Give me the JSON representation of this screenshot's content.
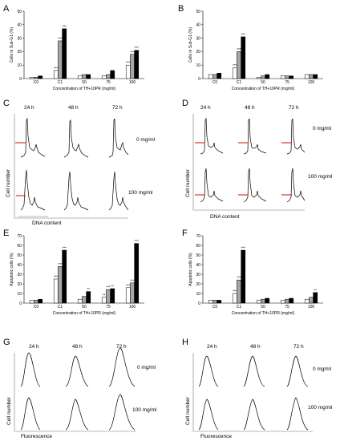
{
  "panel_letters": [
    "A",
    "B",
    "C",
    "D",
    "E",
    "F",
    "G",
    "H"
  ],
  "time_labels": [
    "24 h",
    "48 h",
    "72 h"
  ],
  "dose_labels": [
    "0 mg/ml",
    "100 mg/ml"
  ],
  "common": {
    "cell_number": "Cell number",
    "dna_content": "DNA content",
    "fluorescence": "Fluorescence",
    "concentration": "Concentration of TH+10PR (mg/ml)"
  },
  "colors": {
    "white_bar": "#ffffff",
    "grey_bar": "#a6a6a6",
    "black_bar": "#000000",
    "marker": "#e0302a"
  },
  "chart_data": [
    {
      "panel": "A",
      "type": "bar",
      "categories": [
        "C0",
        "C1",
        "50",
        "75",
        "100"
      ],
      "ylabel": "Cells in Sub-G1 (%)",
      "xlabel": "Concentration of TH+10PR (mg/ml)",
      "ylim": [
        0,
        50
      ],
      "yticks": [
        0,
        10,
        20,
        30,
        40,
        50
      ],
      "series": [
        {
          "values": [
            1,
            6,
            2,
            2,
            10
          ]
        },
        {
          "values": [
            1,
            28,
            3,
            3,
            18
          ]
        },
        {
          "values": [
            2,
            37,
            3,
            6,
            21
          ]
        }
      ],
      "annotations": [
        [
          null,
          "***",
          null,
          null,
          "***"
        ],
        [
          null,
          "***",
          null,
          null,
          "***"
        ],
        [
          null,
          "***",
          null,
          null,
          "***"
        ]
      ]
    },
    {
      "panel": "B",
      "type": "bar",
      "categories": [
        "C0",
        "C1",
        "50",
        "75",
        "100"
      ],
      "ylabel": "Cells in Sub-G1 (%)",
      "xlabel": "Concentration of TH+10PR (mg/ml)",
      "ylim": [
        0,
        50
      ],
      "yticks": [
        0,
        10,
        20,
        30,
        40,
        50
      ],
      "series": [
        {
          "values": [
            3,
            8,
            1,
            2,
            3
          ]
        },
        {
          "values": [
            3,
            20,
            2,
            2,
            3
          ]
        },
        {
          "values": [
            4,
            31,
            3,
            2,
            3
          ]
        }
      ],
      "annotations": [
        [
          null,
          "***",
          null,
          null,
          null
        ],
        [
          null,
          "***",
          null,
          null,
          null
        ],
        [
          null,
          "***",
          null,
          null,
          null
        ]
      ]
    },
    {
      "panel": "E",
      "type": "bar",
      "categories": [
        "C0",
        "C1",
        "50",
        "75",
        "100"
      ],
      "ylabel": "Apoptotic cells (%)",
      "xlabel": "Concentration of TH+10PR (mg/ml)",
      "ylim": [
        0,
        70
      ],
      "yticks": [
        0,
        10,
        20,
        30,
        40,
        50,
        60,
        70
      ],
      "series": [
        {
          "values": [
            3,
            25,
            4,
            6,
            16
          ]
        },
        {
          "values": [
            3,
            38,
            7,
            14,
            21
          ]
        },
        {
          "values": [
            4,
            55,
            12,
            15,
            62
          ]
        }
      ],
      "annotations": [
        [
          null,
          "***",
          null,
          "**",
          "***"
        ],
        [
          null,
          "***",
          null,
          "***",
          "***"
        ],
        [
          null,
          "***",
          "**",
          "**",
          "***"
        ]
      ]
    },
    {
      "panel": "F",
      "type": "bar",
      "categories": [
        "C0",
        "C1",
        "50",
        "75",
        "100"
      ],
      "ylabel": "Apoptotic cells (%)",
      "xlabel": "Concentration of TH+10PR (mg/ml)",
      "ylim": [
        0,
        70
      ],
      "yticks": [
        0,
        10,
        20,
        30,
        40,
        50,
        60,
        70
      ],
      "series": [
        {
          "values": [
            3,
            10,
            3,
            3,
            4
          ]
        },
        {
          "values": [
            3,
            24,
            4,
            4,
            6
          ]
        },
        {
          "values": [
            3,
            55,
            5,
            5,
            11
          ]
        }
      ],
      "annotations": [
        [
          null,
          "***",
          null,
          null,
          null
        ],
        [
          null,
          "***",
          null,
          null,
          null
        ],
        [
          null,
          "***",
          null,
          null,
          "**"
        ]
      ]
    }
  ]
}
